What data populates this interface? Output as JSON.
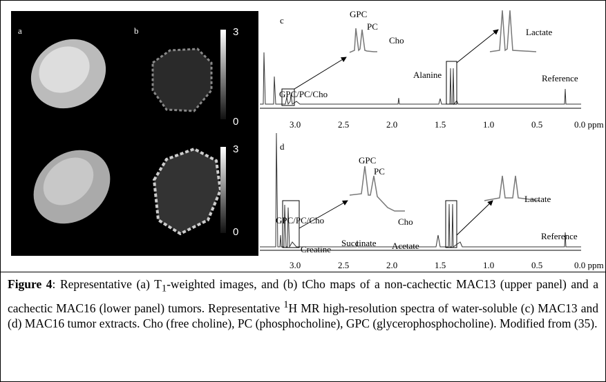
{
  "panels": {
    "images": {
      "a": "a",
      "b": "b",
      "colorbar_top": [
        "3",
        "0"
      ],
      "colorbar_bottom": [
        "3",
        "0"
      ]
    },
    "c": {
      "label": "c",
      "annotations": [
        "GPC",
        "PC",
        "Cho",
        "GPC/PC/Cho",
        "Alanine",
        "Lactate",
        "Reference"
      ],
      "ticks": [
        "3.0",
        "2.5",
        "2.0",
        "1.5",
        "1.0",
        "0.5",
        "0.0 ppm"
      ]
    },
    "d": {
      "label": "d",
      "annotations": [
        "GPC",
        "PC",
        "Cho",
        "GPC/PC/Cho",
        "Creatine",
        "Succinate",
        "Acetate",
        "Lactate",
        "Reference"
      ],
      "ticks": [
        "3.0",
        "2.5",
        "2.0",
        "1.5",
        "1.0",
        "0.5",
        "0.0 ppm"
      ]
    }
  },
  "caption": {
    "label": "Figure 4",
    "parts": [
      ": Representative (a) T",
      "1",
      "-weighted images, and (b) tCho maps of a non-cachectic MAC13 (upper panel) and a cachectic MAC16 (lower panel) tumors. Representative ",
      "1",
      "H MR high-resolution spectra of water-soluble (c) MAC13 and (d) MAC16 tumor extracts. Cho (free choline), PC (phosphocholine), GPC (glycerophosphocholine). Modified from (35)."
    ]
  }
}
